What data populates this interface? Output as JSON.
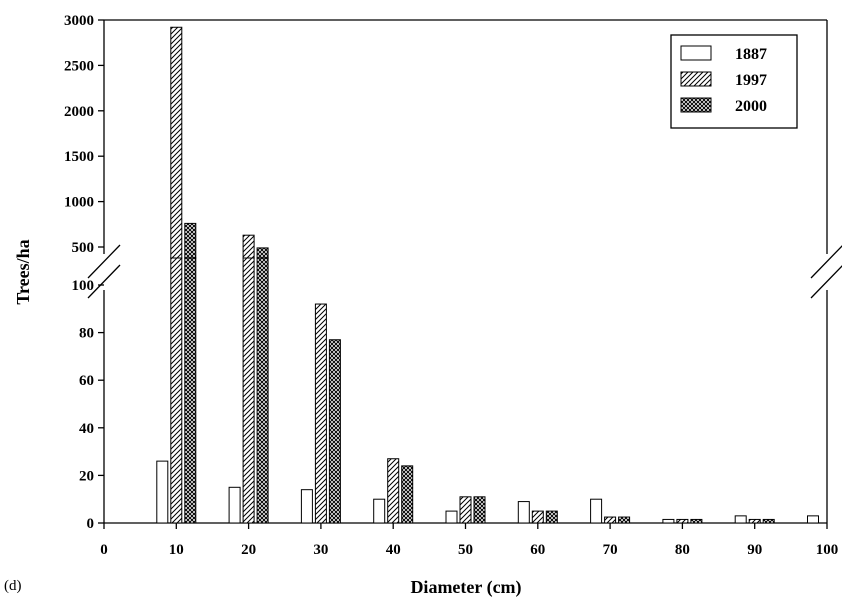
{
  "chart_data": {
    "type": "bar",
    "panel_label": "(d)",
    "xlabel": "Diameter (cm)",
    "ylabel": "Trees/ha",
    "x_ticks": [
      0,
      10,
      20,
      30,
      40,
      50,
      60,
      70,
      80,
      90,
      100
    ],
    "xlim": [
      0,
      100
    ],
    "y_lower": {
      "ylim": [
        0,
        100
      ],
      "ticks": [
        0,
        20,
        40,
        60,
        80,
        100
      ]
    },
    "y_upper": {
      "ylim": [
        300,
        3000
      ],
      "ticks": [
        500,
        1000,
        1500,
        2000,
        2500,
        3000
      ]
    },
    "axis_break": true,
    "grid": false,
    "legend_position": "top-right",
    "categories": [
      10,
      20,
      30,
      40,
      50,
      60,
      70,
      80,
      90,
      100
    ],
    "series": [
      {
        "name": "1887",
        "pattern": "open",
        "values": [
          26,
          15,
          14,
          10,
          5,
          9,
          10,
          1.5,
          3,
          3
        ]
      },
      {
        "name": "1997",
        "pattern": "hatched",
        "values": [
          2920,
          630,
          92,
          27,
          11,
          5,
          2.5,
          1.5,
          1.5,
          null
        ]
      },
      {
        "name": "2000",
        "pattern": "crosshatched",
        "values": [
          760,
          490,
          77,
          24,
          11,
          5,
          2.5,
          1.5,
          1.5,
          null
        ]
      }
    ]
  }
}
